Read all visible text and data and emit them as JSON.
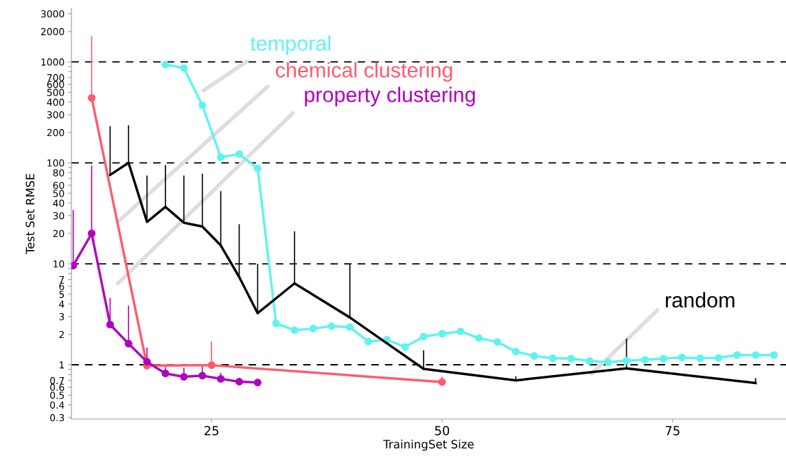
{
  "chart_data": {
    "type": "line",
    "xlabel": "TrainingSet Size",
    "ylabel": "Test Set RMSE",
    "log": "y",
    "xlim": [
      9.8,
      87.3
    ],
    "xticks": [
      25,
      50,
      75
    ],
    "ylim": [
      0.29,
      3400
    ],
    "yticks": [
      0.3,
      0.4,
      0.5,
      0.6,
      0.7,
      {
        "value": 0.8,
        "label": null
      },
      {
        "value": 0.9,
        "label": null
      },
      1,
      2,
      3,
      4,
      5,
      6,
      7,
      {
        "value": 8,
        "label": null
      },
      {
        "value": 9,
        "label": null
      },
      10,
      20,
      30,
      40,
      50,
      60,
      {
        "value": 70,
        "label": null
      },
      80,
      {
        "value": 90,
        "label": null
      },
      100,
      200,
      300,
      400,
      500,
      600,
      700,
      {
        "value": 800,
        "label": null
      },
      {
        "value": 900,
        "label": null
      },
      1000,
      2000,
      3000
    ],
    "grid": false,
    "ref_lines": [
      {
        "axis": "y",
        "value": 1,
        "color": "#000000",
        "line_style": "dashed"
      },
      {
        "axis": "y",
        "value": 10,
        "color": "#000000",
        "line_style": "dashed"
      },
      {
        "axis": "y",
        "value": 100,
        "color": "#000000",
        "line_style": "dashed"
      },
      {
        "axis": "y",
        "value": 1000,
        "color": "#000000",
        "line_style": "dashed"
      }
    ],
    "series": [
      {
        "name": "temporal",
        "color": "#5ff3f0",
        "marker": "circle",
        "x": [
          20,
          22,
          24,
          26,
          28,
          30,
          32,
          34,
          36,
          38,
          40,
          42,
          44,
          46,
          48,
          50,
          52,
          54,
          56,
          58,
          60,
          62,
          64,
          66,
          68,
          70,
          72,
          74,
          76,
          78,
          80,
          82,
          84,
          86
        ],
        "values": [
          940,
          870,
          372,
          114,
          122,
          88,
          2.57,
          2.2,
          2.28,
          2.41,
          2.36,
          1.7,
          1.77,
          1.5,
          1.9,
          2.03,
          2.14,
          1.84,
          1.68,
          1.35,
          1.22,
          1.16,
          1.15,
          1.09,
          1.06,
          1.1,
          1.12,
          1.15,
          1.18,
          1.16,
          1.17,
          1.25,
          1.25,
          1.25
        ]
      },
      {
        "name": "chemical clustering",
        "color": "#ff5a6e",
        "marker": "circle",
        "x": [
          12,
          18,
          25,
          50
        ],
        "values": [
          440,
          0.98,
          0.99,
          0.675
        ],
        "errors": [
          [
            440,
            1800
          ],
          null,
          [
            0.99,
            1.7
          ],
          [
            0.675,
            0.76
          ]
        ]
      },
      {
        "name": "property clustering",
        "color": "#b000c0",
        "marker": "circle",
        "x": [
          10,
          12,
          14,
          16,
          18,
          20,
          22,
          24,
          26,
          28,
          30
        ],
        "values": [
          9.6,
          20,
          2.5,
          1.62,
          1.07,
          0.82,
          0.76,
          0.78,
          0.725,
          0.68,
          0.667
        ],
        "errors": [
          [
            9.6,
            34
          ],
          [
            20,
            94
          ],
          [
            2.5,
            4.6
          ],
          [
            1.62,
            3.86
          ],
          [
            1.07,
            1.48
          ],
          [
            0.82,
            0.95
          ],
          [
            0.76,
            0.93
          ],
          [
            0.78,
            0.97
          ],
          [
            0.725,
            0.83
          ],
          [
            0.68,
            0.71
          ],
          [
            0.667,
            0.72
          ]
        ]
      },
      {
        "name": "random",
        "color": "#000000",
        "marker": "none",
        "x": [
          14,
          16,
          18,
          20,
          22,
          24,
          26,
          28,
          30,
          34,
          40,
          48,
          58,
          70,
          84
        ],
        "values": [
          76,
          100,
          26,
          36.6,
          25.5,
          23.4,
          15.2,
          7.4,
          3.24,
          6.4,
          2.94,
          0.91,
          0.7,
          0.92,
          0.66
        ],
        "errors": [
          [
            76,
            231
          ],
          [
            100,
            236
          ],
          [
            26,
            75
          ],
          [
            36.6,
            95
          ],
          [
            25.5,
            75
          ],
          [
            23.4,
            78
          ],
          [
            15.2,
            52.5
          ],
          [
            7.4,
            24.7
          ],
          [
            3.24,
            10
          ],
          [
            6.4,
            21
          ],
          [
            2.94,
            10
          ],
          [
            0.91,
            1.39
          ],
          [
            0.7,
            0.77
          ],
          [
            0.92,
            1.82
          ],
          [
            0.66,
            0.74
          ]
        ]
      }
    ]
  }
}
